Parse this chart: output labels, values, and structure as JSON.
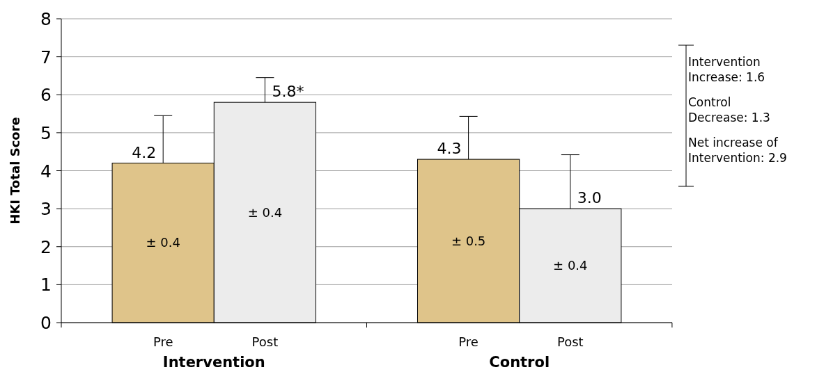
{
  "chart_data": {
    "type": "bar",
    "ylabel": "HKI Total Score",
    "categories": [
      "Intervention",
      "Control"
    ],
    "series": [
      {
        "name": "Pre",
        "color": "#dfc48a",
        "values": [
          4.2,
          4.3
        ],
        "errors": [
          [
            4.2,
            5.45
          ],
          [
            4.3,
            5.43
          ]
        ],
        "value_labels": [
          "4.2",
          "4.3"
        ]
      },
      {
        "name": "Post",
        "color": "#ececec",
        "values": [
          5.8,
          3.0
        ],
        "errors": [
          [
            5.8,
            6.45
          ],
          [
            3.0,
            4.42
          ]
        ],
        "value_labels": [
          "5.8*",
          "3.0"
        ]
      }
    ],
    "ylim": [
      0,
      8
    ],
    "yticks": [
      0,
      1,
      2,
      3,
      4,
      5,
      6,
      7,
      8
    ],
    "grid": "y",
    "annotations": [
      "± 0.4",
      "± 0.5",
      "± 0.4",
      "± 0.4",
      "Intervention Increase: 1.6",
      "Control Decrease: 1.3",
      "Net increase of Intervention: 2.9"
    ]
  }
}
